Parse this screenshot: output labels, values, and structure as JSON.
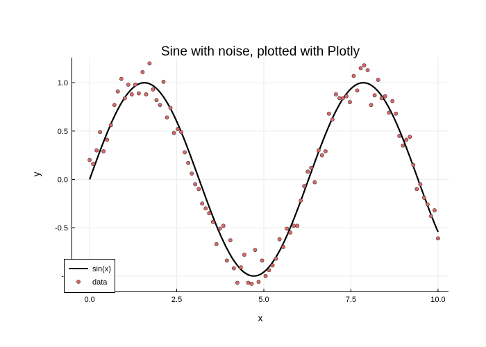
{
  "chart_data": {
    "type": "scatter",
    "title": "Sine with noise, plotted with Plotly",
    "xlabel": "x",
    "ylabel": "y",
    "xlim": [
      -0.5,
      10.3
    ],
    "ylim": [
      -1.16,
      1.26
    ],
    "x_ticks": [
      0,
      2.5,
      5,
      7.5,
      10
    ],
    "x_tick_labels": [
      "0.0",
      "2.5",
      "5.0",
      "7.5",
      "10.0"
    ],
    "y_ticks": [
      1,
      0.5,
      0,
      -0.5,
      -1
    ],
    "y_tick_labels": [
      "1.0",
      "0.5",
      "0.0",
      "-0.5",
      "-1"
    ],
    "grid": true,
    "legend_position": "bottom-left",
    "series": [
      {
        "name": "sin(x)",
        "kind": "line",
        "color": "#000000",
        "function": "sin(x)",
        "x_range": [
          0,
          10
        ]
      },
      {
        "name": "data",
        "kind": "scatter",
        "color": "#e06666",
        "edge_color": "#333333",
        "x": [
          0.0,
          0.1,
          0.2,
          0.3,
          0.4,
          0.5,
          0.61,
          0.71,
          0.81,
          0.91,
          1.01,
          1.11,
          1.21,
          1.31,
          1.41,
          1.52,
          1.62,
          1.72,
          1.82,
          1.92,
          2.02,
          2.12,
          2.22,
          2.32,
          2.42,
          2.53,
          2.63,
          2.73,
          2.83,
          2.93,
          3.03,
          3.13,
          3.23,
          3.33,
          3.43,
          3.54,
          3.64,
          3.74,
          3.84,
          3.94,
          4.04,
          4.14,
          4.24,
          4.34,
          4.44,
          4.55,
          4.65,
          4.75,
          4.85,
          4.95,
          5.05,
          5.15,
          5.25,
          5.35,
          5.45,
          5.56,
          5.66,
          5.76,
          5.86,
          5.96,
          6.06,
          6.16,
          6.26,
          6.36,
          6.46,
          6.57,
          6.67,
          6.77,
          6.87,
          6.97,
          7.07,
          7.17,
          7.27,
          7.37,
          7.47,
          7.58,
          7.68,
          7.78,
          7.88,
          7.98,
          8.08,
          8.18,
          8.28,
          8.38,
          8.48,
          8.59,
          8.69,
          8.79,
          8.89,
          8.99,
          9.09,
          9.19,
          9.29,
          9.39,
          9.49,
          9.6,
          9.7,
          9.8,
          9.9,
          10.0
        ],
        "y": [
          0.2,
          0.16,
          0.3,
          0.49,
          0.29,
          0.41,
          0.56,
          0.77,
          0.91,
          1.04,
          0.84,
          0.98,
          0.88,
          0.98,
          0.89,
          1.11,
          0.88,
          1.2,
          0.93,
          0.82,
          0.77,
          1.01,
          0.64,
          0.74,
          0.48,
          0.52,
          0.49,
          0.28,
          0.17,
          0.06,
          -0.05,
          -0.1,
          -0.25,
          -0.3,
          -0.35,
          -0.44,
          -0.67,
          -0.51,
          -0.48,
          -0.84,
          -0.63,
          -0.92,
          -1.07,
          -0.91,
          -0.78,
          -1.07,
          -1.08,
          -0.73,
          -1.06,
          -0.84,
          -1.0,
          -0.94,
          -0.89,
          -0.82,
          -0.62,
          -0.7,
          -0.51,
          -0.55,
          -0.48,
          -0.48,
          -0.22,
          -0.07,
          0.08,
          0.12,
          -0.03,
          0.3,
          0.25,
          0.29,
          0.68,
          0.62,
          0.88,
          0.84,
          0.84,
          0.86,
          0.8,
          1.07,
          0.92,
          1.15,
          1.18,
          1.13,
          0.77,
          0.87,
          1.03,
          0.84,
          0.86,
          0.69,
          0.81,
          0.68,
          0.45,
          0.35,
          0.41,
          0.44,
          0.15,
          -0.1,
          -0.05,
          -0.19,
          -0.26,
          -0.38,
          -0.32,
          -0.61
        ]
      }
    ]
  }
}
